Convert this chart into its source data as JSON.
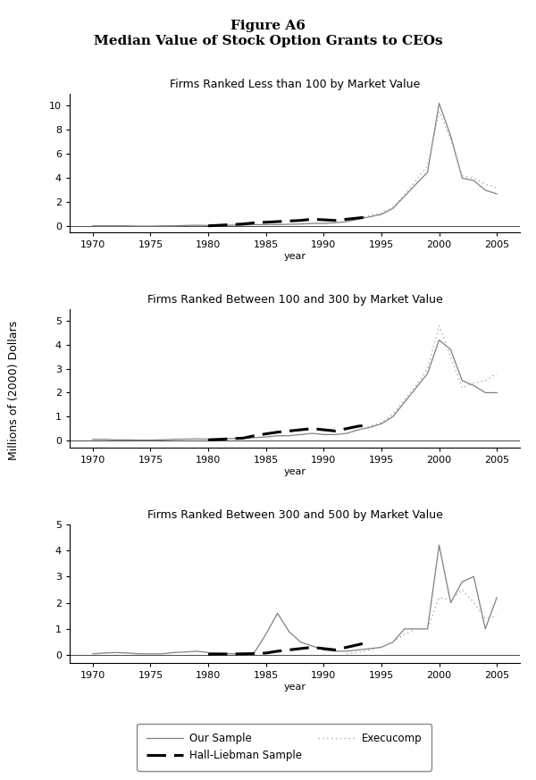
{
  "title_line1": "Figure A6",
  "title_line2": "Median Value of Stock Option Grants to CEOs",
  "ylabel": "Millions of (2000) Dollars",
  "xlabel": "year",
  "legend_entries": [
    "Our Sample",
    "Hall-Liebman Sample",
    "Execucomp"
  ],
  "panel1_title": "Firms Ranked Less than 100 by Market Value",
  "panel1_ylim": [
    -0.5,
    11
  ],
  "panel1_yticks": [
    0,
    2,
    4,
    6,
    8,
    10
  ],
  "panel1_our_sample": {
    "years": [
      1970,
      1971,
      1972,
      1973,
      1974,
      1975,
      1976,
      1977,
      1978,
      1979,
      1980,
      1981,
      1982,
      1983,
      1984,
      1985,
      1986,
      1987,
      1988,
      1989,
      1990,
      1991,
      1992,
      1993,
      1994,
      1995,
      1996,
      1997,
      1998,
      1999,
      2000,
      2001,
      2002,
      2003,
      2004,
      2005
    ],
    "values": [
      0.05,
      0.05,
      0.05,
      0.05,
      0.03,
      0.03,
      0.05,
      0.05,
      0.08,
      0.1,
      0.08,
      0.1,
      0.1,
      0.12,
      0.15,
      0.15,
      0.15,
      0.18,
      0.2,
      0.25,
      0.25,
      0.3,
      0.4,
      0.6,
      0.8,
      1.0,
      1.5,
      2.5,
      3.5,
      4.5,
      10.2,
      7.5,
      4.0,
      3.8,
      3.0,
      2.7
    ]
  },
  "panel1_hall_liebman": {
    "years": [
      1980,
      1981,
      1982,
      1983,
      1984,
      1985,
      1986,
      1987,
      1988,
      1989,
      1990,
      1991,
      1992,
      1993,
      1994
    ],
    "values": [
      0.05,
      0.1,
      0.15,
      0.2,
      0.3,
      0.35,
      0.4,
      0.45,
      0.5,
      0.6,
      0.55,
      0.5,
      0.6,
      0.7,
      0.8
    ]
  },
  "panel1_execucomp": {
    "years": [
      1992,
      1993,
      1994,
      1995,
      1996,
      1997,
      1998,
      1999,
      2000,
      2001,
      2002,
      2003,
      2004,
      2005
    ],
    "values": [
      0.5,
      0.7,
      0.9,
      1.1,
      1.6,
      2.6,
      3.8,
      5.0,
      9.5,
      7.2,
      4.2,
      4.0,
      3.5,
      3.2
    ]
  },
  "panel2_title": "Firms Ranked Between 100 and 300 by Market Value",
  "panel2_ylim": [
    -0.3,
    5.5
  ],
  "panel2_yticks": [
    0,
    1,
    2,
    3,
    4,
    5
  ],
  "panel2_our_sample": {
    "years": [
      1970,
      1971,
      1972,
      1973,
      1974,
      1975,
      1976,
      1977,
      1978,
      1979,
      1980,
      1981,
      1982,
      1983,
      1984,
      1985,
      1986,
      1987,
      1988,
      1989,
      1990,
      1991,
      1992,
      1993,
      1994,
      1995,
      1996,
      1997,
      1998,
      1999,
      2000,
      2001,
      2002,
      2003,
      2004,
      2005
    ],
    "values": [
      0.05,
      0.05,
      0.03,
      0.03,
      0.02,
      0.02,
      0.03,
      0.05,
      0.06,
      0.07,
      0.06,
      0.07,
      0.08,
      0.1,
      0.12,
      0.15,
      0.2,
      0.2,
      0.25,
      0.3,
      0.25,
      0.25,
      0.3,
      0.45,
      0.55,
      0.7,
      1.0,
      1.6,
      2.2,
      2.8,
      4.2,
      3.8,
      2.5,
      2.3,
      2.0,
      2.0
    ]
  },
  "panel2_hall_liebman": {
    "years": [
      1980,
      1981,
      1982,
      1983,
      1984,
      1985,
      1986,
      1987,
      1988,
      1989,
      1990,
      1991,
      1992,
      1993,
      1994
    ],
    "values": [
      0.03,
      0.05,
      0.08,
      0.1,
      0.2,
      0.28,
      0.35,
      0.4,
      0.45,
      0.5,
      0.45,
      0.4,
      0.5,
      0.6,
      0.65
    ]
  },
  "panel2_execucomp": {
    "years": [
      1992,
      1993,
      1994,
      1995,
      1996,
      1997,
      1998,
      1999,
      2000,
      2001,
      2002,
      2003,
      2004,
      2005
    ],
    "values": [
      0.3,
      0.45,
      0.6,
      0.75,
      1.1,
      1.7,
      2.3,
      3.0,
      4.8,
      3.5,
      2.2,
      2.4,
      2.5,
      2.8
    ]
  },
  "panel3_title": "Firms Ranked Between 300 and 500 by Market Value",
  "panel3_ylim": [
    -0.3,
    5.0
  ],
  "panel3_yticks": [
    0,
    1,
    2,
    3,
    4,
    5
  ],
  "panel3_our_sample": {
    "years": [
      1970,
      1971,
      1972,
      1973,
      1974,
      1975,
      1976,
      1977,
      1978,
      1979,
      1980,
      1981,
      1982,
      1983,
      1984,
      1985,
      1986,
      1987,
      1988,
      1989,
      1990,
      1991,
      1992,
      1993,
      1994,
      1995,
      1996,
      1997,
      1998,
      1999,
      2000,
      2001,
      2002,
      2003,
      2004,
      2005
    ],
    "values": [
      0.05,
      0.08,
      0.1,
      0.08,
      0.05,
      0.05,
      0.05,
      0.1,
      0.12,
      0.15,
      0.1,
      0.08,
      0.05,
      0.05,
      0.1,
      0.8,
      1.6,
      0.9,
      0.5,
      0.35,
      0.2,
      0.15,
      0.15,
      0.2,
      0.25,
      0.3,
      0.5,
      1.0,
      1.0,
      1.0,
      4.2,
      2.0,
      2.8,
      3.0,
      1.0,
      2.2
    ]
  },
  "panel3_hall_liebman": {
    "years": [
      1980,
      1981,
      1982,
      1983,
      1984,
      1985,
      1986,
      1987,
      1988,
      1989,
      1990,
      1991,
      1992,
      1993,
      1994
    ],
    "values": [
      0.03,
      0.04,
      0.04,
      0.05,
      0.06,
      0.08,
      0.15,
      0.2,
      0.25,
      0.3,
      0.25,
      0.2,
      0.3,
      0.4,
      0.5
    ]
  },
  "panel3_execucomp": {
    "years": [
      1992,
      1993,
      1994,
      1995,
      1996,
      1997,
      1998,
      1999,
      2000,
      2001,
      2002,
      2003,
      2004,
      2005
    ],
    "values": [
      0.05,
      0.1,
      0.2,
      0.3,
      0.5,
      0.8,
      1.0,
      1.0,
      2.2,
      2.1,
      2.5,
      2.0,
      1.4,
      1.5
    ]
  },
  "color_our_sample": "#808080",
  "color_hall_liebman": "#000000",
  "color_execucomp": "#aaaaaa",
  "xlim": [
    1968,
    2007
  ],
  "xticks": [
    1970,
    1975,
    1980,
    1985,
    1990,
    1995,
    2000,
    2005
  ]
}
